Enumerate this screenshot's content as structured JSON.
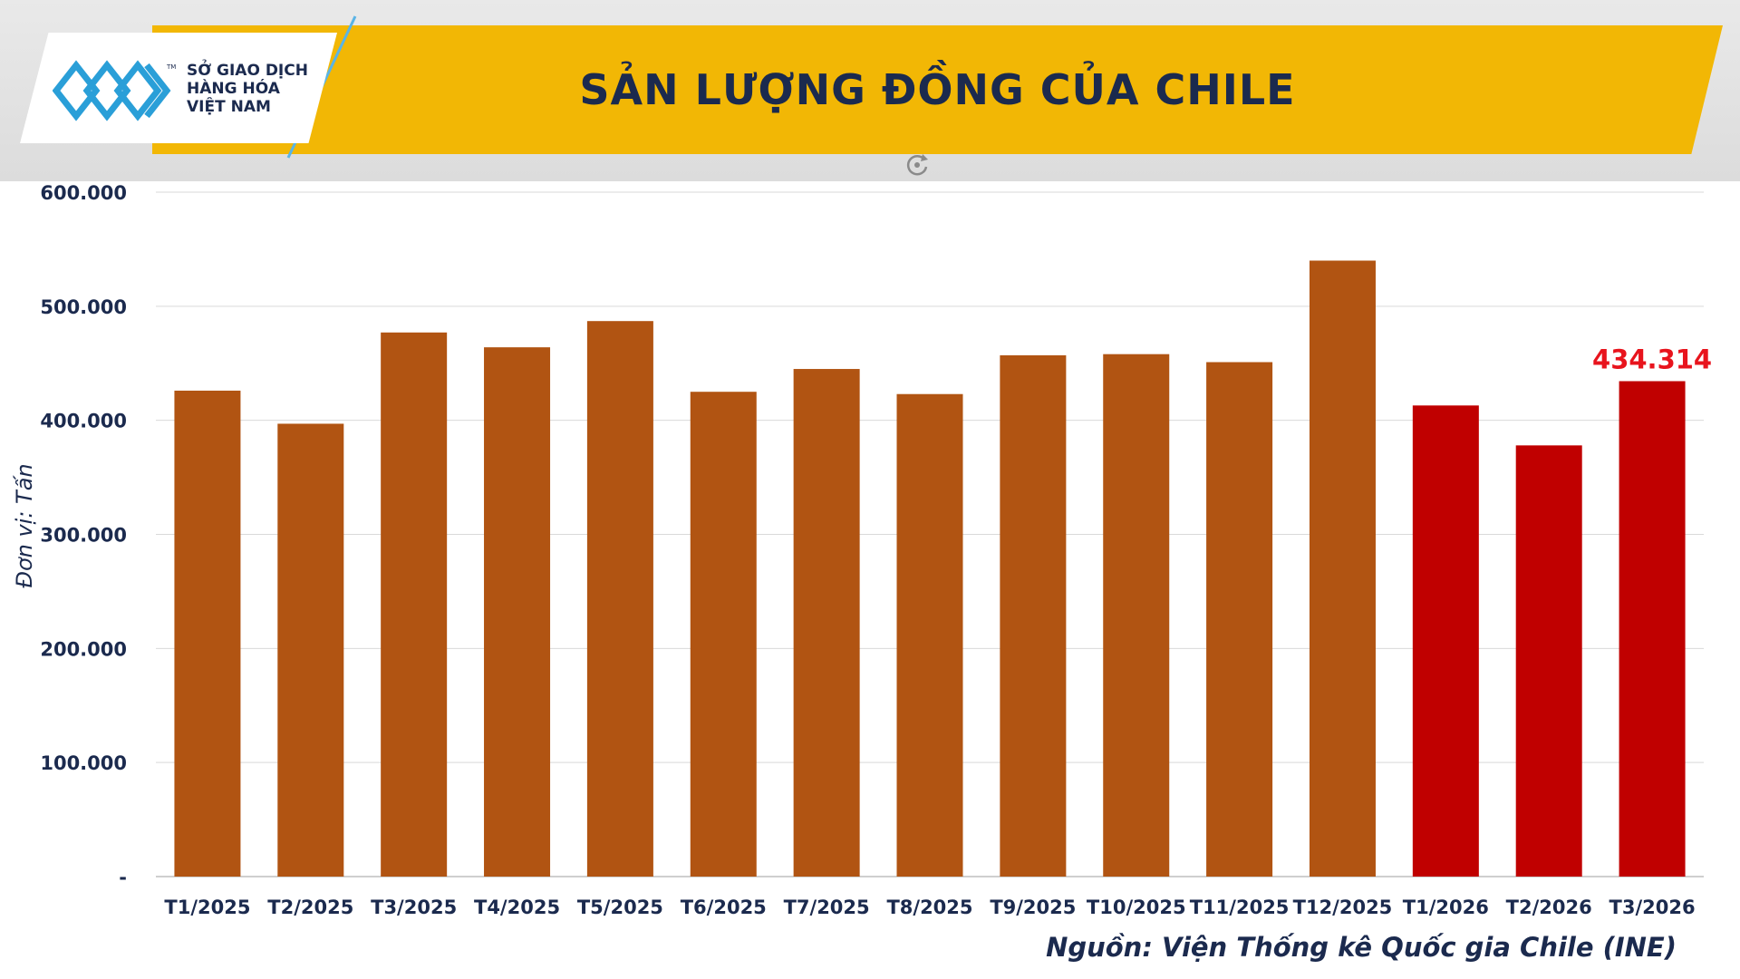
{
  "header": {
    "title": "SẢN LƯỢNG ĐỒNG CỦA CHILE",
    "logo_lines": [
      "SỞ GIAO DỊCH",
      "HÀNG HÓA",
      "VIỆT NAM"
    ],
    "logo_tm": "TM"
  },
  "colors": {
    "banner": "#f2b705",
    "title_text": "#1b2a4e",
    "bar_2025": "#b15412",
    "bar_2026": "#c00000",
    "highlight_label": "#e8141d"
  },
  "icons": [
    "logo-mark-icon",
    "refresh-icon"
  ],
  "chart_data": {
    "type": "bar",
    "title": "SẢN LƯỢNG ĐỒNG CỦA CHILE",
    "xlabel": "",
    "ylabel": "Đơn vị: Tấn",
    "ylim": [
      0,
      600000
    ],
    "y_ticks": [
      0,
      100000,
      200000,
      300000,
      400000,
      500000,
      600000
    ],
    "y_tick_labels": [
      "-",
      "100.000",
      "200.000",
      "300.000",
      "400.000",
      "500.000",
      "600.000"
    ],
    "grid": true,
    "categories": [
      "T1/2025",
      "T2/2025",
      "T3/2025",
      "T4/2025",
      "T5/2025",
      "T6/2025",
      "T7/2025",
      "T8/2025",
      "T9/2025",
      "T10/2025",
      "T11/2025",
      "T12/2025",
      "T1/2026",
      "T2/2026",
      "T3/2026"
    ],
    "values": [
      426000,
      397000,
      477000,
      464000,
      487000,
      425000,
      445000,
      423000,
      457000,
      458000,
      451000,
      540000,
      413000,
      378000,
      434314
    ],
    "bar_colors": [
      "#b15412",
      "#b15412",
      "#b15412",
      "#b15412",
      "#b15412",
      "#b15412",
      "#b15412",
      "#b15412",
      "#b15412",
      "#b15412",
      "#b15412",
      "#b15412",
      "#c00000",
      "#c00000",
      "#c00000"
    ],
    "annotations": [
      {
        "category": "T3/2026",
        "text": "434.314"
      }
    ],
    "source": "Nguồn: Viện Thống kê Quốc gia Chile (INE)"
  }
}
